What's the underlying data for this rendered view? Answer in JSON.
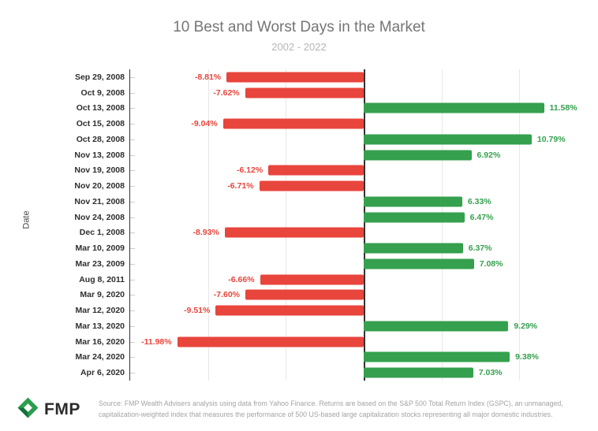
{
  "title": "10 Best and Worst Days in the Market",
  "subtitle": "2002 - 2022",
  "y_axis_title": "Date",
  "footer": {
    "logo_text": "FMP",
    "source_text": "Source: FMP Wealth Advisers analysis using data from Yahoo Finance. Returns are based on the S&P 500 Total Return Index (GSPC), an unmanaged, capitalization-weighted index that measures the performance of 500 US-based large capitalization stocks representing all major domestic industries."
  },
  "colors": {
    "positive": "#35a04e",
    "negative": "#e8453c",
    "grid": "#e7e7e7",
    "axis": "#333333",
    "title": "#757575",
    "subtitle": "#b5b5b5",
    "logo_dark_green": "#14713c",
    "logo_green": "#2a9d4e"
  },
  "chart_data": {
    "type": "bar",
    "orientation": "horizontal",
    "title": "10 Best and Worst Days in the Market",
    "subtitle": "2002 - 2022",
    "xlabel": "",
    "ylabel": "Date",
    "xlim": [
      -15,
      15
    ],
    "gridlines": [
      -10,
      -5,
      5,
      10
    ],
    "grid": true,
    "legend": false,
    "categories": [
      "Sep 29, 2008",
      "Oct 9, 2008",
      "Oct 13, 2008",
      "Oct 15, 2008",
      "Oct 28, 2008",
      "Nov 13, 2008",
      "Nov 19, 2008",
      "Nov 20, 2008",
      "Nov 21, 2008",
      "Nov 24, 2008",
      "Dec 1, 2008",
      "Mar 10, 2009",
      "Mar 23, 2009",
      "Aug 8, 2011",
      "Mar 9, 2020",
      "Mar 12, 2020",
      "Mar 13, 2020",
      "Mar 16, 2020",
      "Mar 24, 2020",
      "Apr 6, 2020"
    ],
    "values": [
      -8.81,
      -7.62,
      11.58,
      -9.04,
      10.79,
      6.92,
      -6.12,
      -6.71,
      6.33,
      6.47,
      -8.93,
      6.37,
      7.08,
      -6.66,
      -7.6,
      -9.51,
      9.29,
      -11.98,
      9.38,
      7.03
    ],
    "labels": [
      "-8.81%",
      "-7.62%",
      "11.58%",
      "-9.04%",
      "10.79%",
      "6.92%",
      "-6.12%",
      "-6.71%",
      "6.33%",
      "6.47%",
      "-8.93%",
      "6.37%",
      "7.08%",
      "-6.66%",
      "-7.60%",
      "-9.51%",
      "9.29%",
      "-11.98%",
      "9.38%",
      "7.03%"
    ]
  }
}
